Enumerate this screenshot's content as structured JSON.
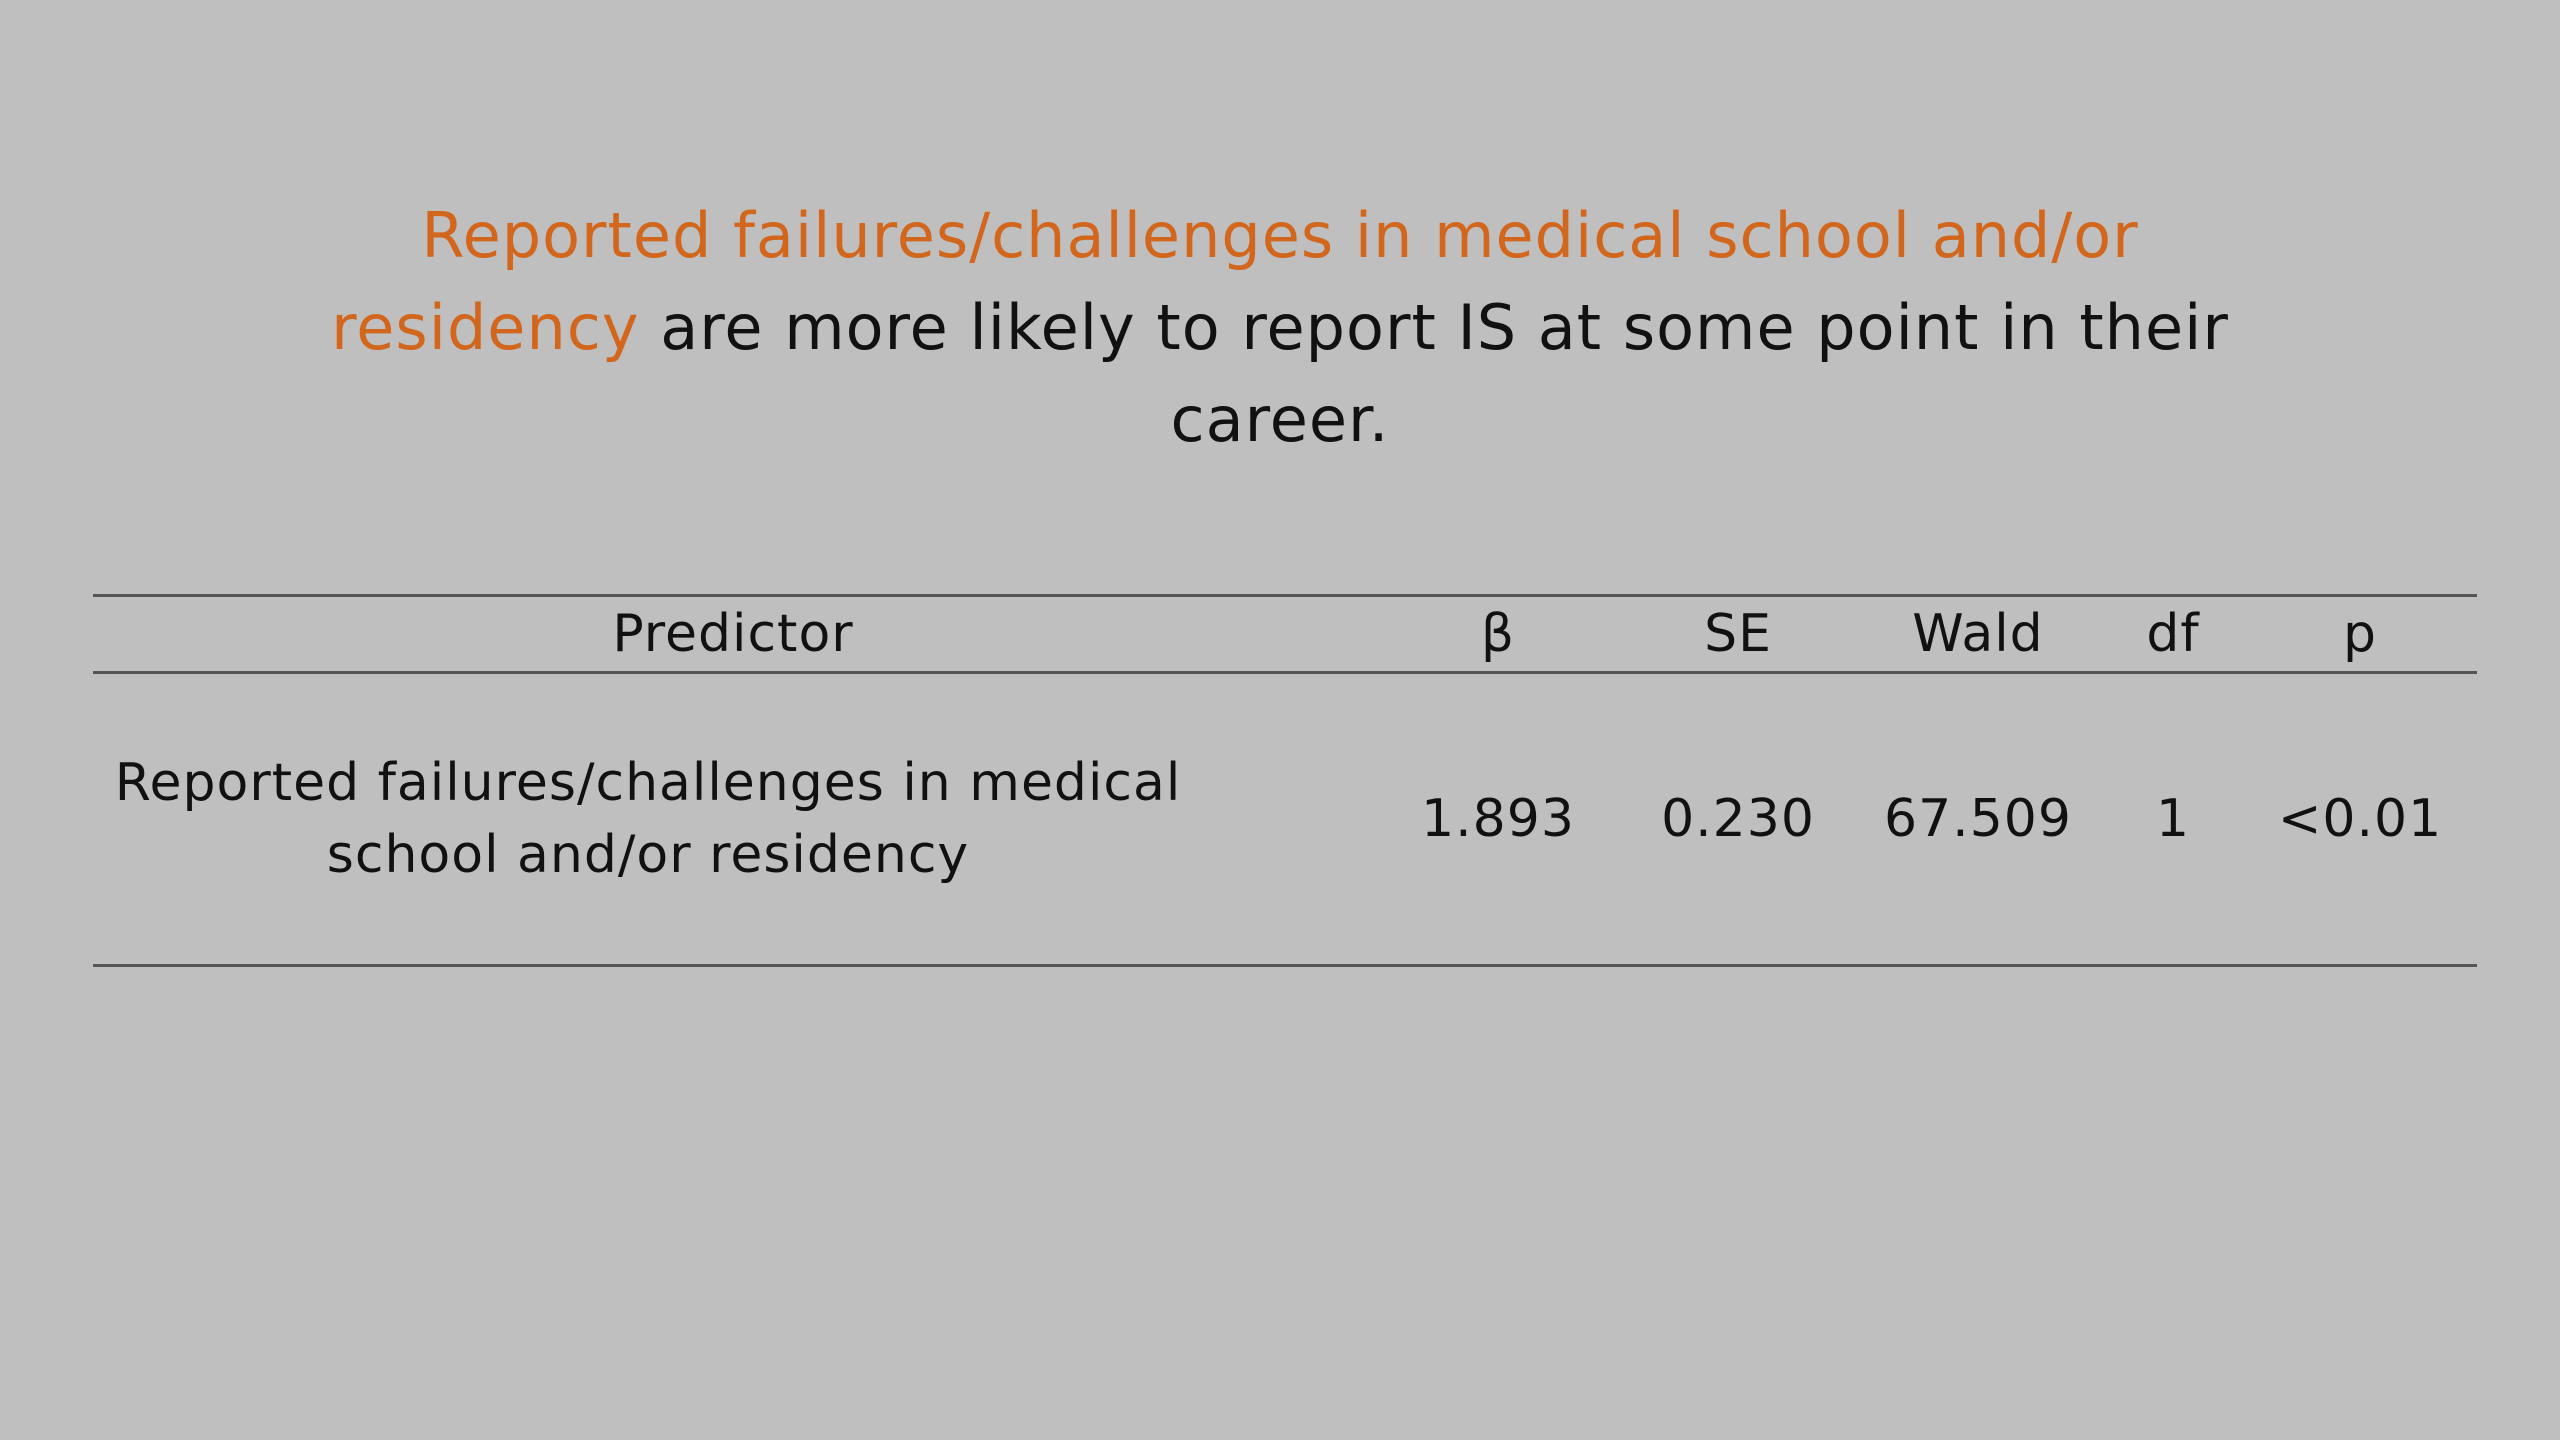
{
  "headline": {
    "highlight": "Reported failures/challenges in medical school and/or residency",
    "rest": " are more likely to report IS at some point in their career."
  },
  "table": {
    "headers": [
      "Predictor",
      "β",
      "SE",
      "Wald",
      "df",
      "p"
    ],
    "rows": [
      {
        "predictor": "Reported failures/challenges in medical school and/or residency",
        "beta": "1.893",
        "se": "0.230",
        "wald": "67.509",
        "df": "1",
        "p": "<0.01"
      }
    ]
  },
  "colors": {
    "background": "#bfbfbf",
    "accent": "#d2661c",
    "text": "#111111",
    "rule": "#555555"
  }
}
